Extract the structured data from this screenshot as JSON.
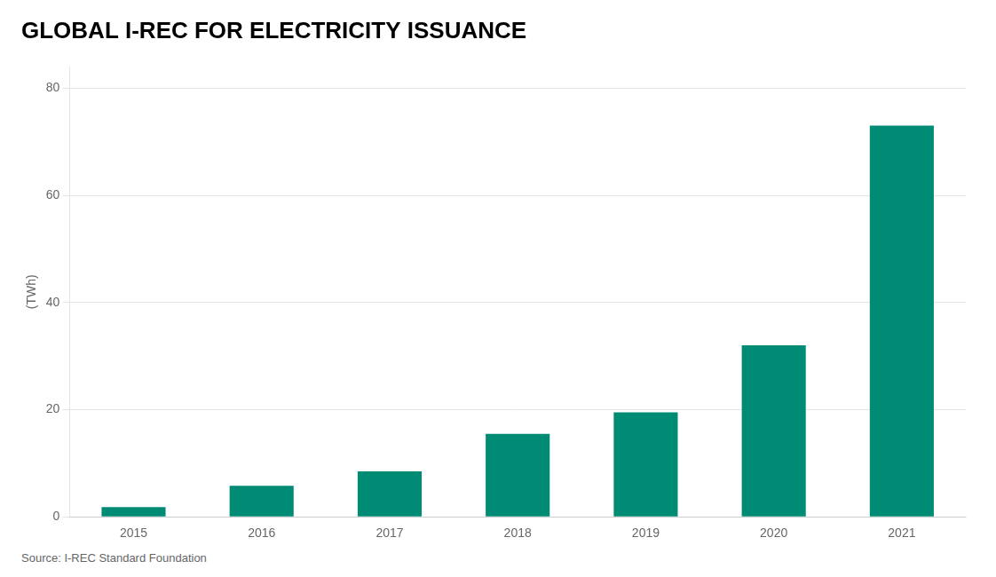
{
  "chart_data": {
    "type": "bar",
    "title": "GLOBAL I-REC FOR ELECTRICITY ISSUANCE",
    "ylabel": "(TWh)",
    "source": "Source: I-REC Standard Foundation",
    "categories": [
      "2015",
      "2016",
      "2017",
      "2018",
      "2019",
      "2020",
      "2021"
    ],
    "values": [
      1.8,
      5.8,
      8.5,
      15.5,
      19.5,
      32.0,
      73.0
    ],
    "color": "#008B74",
    "ylim": [
      0,
      84
    ],
    "yticks": [
      0,
      20,
      40,
      60,
      80
    ],
    "grid": true
  }
}
